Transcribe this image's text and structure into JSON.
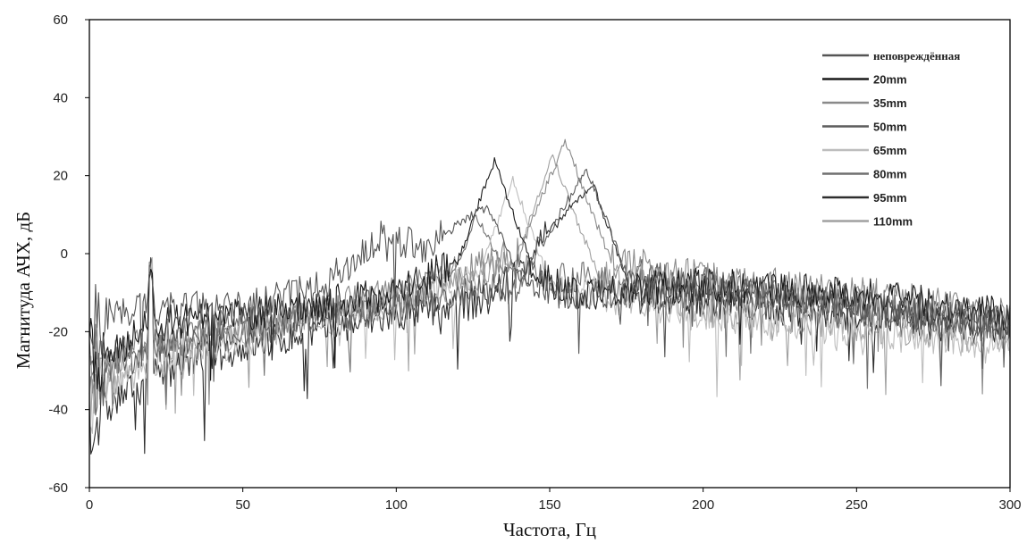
{
  "chart_data": {
    "type": "line",
    "title": "",
    "xlabel": "Частота, Гц",
    "ylabel": "Магнитуда АЧХ, дБ",
    "xlim": [
      0,
      300
    ],
    "ylim": [
      -60,
      60
    ],
    "xticks": [
      "0",
      "50",
      "100",
      "150",
      "200",
      "250",
      "300"
    ],
    "yticks": [
      "60",
      "40",
      "20",
      "0",
      "-20",
      "-40",
      "-60"
    ],
    "grid": false,
    "legend_position": "top-right",
    "series": [
      {
        "name": "неповреждённая",
        "color": "#555555",
        "peak_freq": 130,
        "peak_db": 12,
        "secondary_freq": 95,
        "secondary_db": 4,
        "noise_floor_db": -22,
        "x": [
          0,
          20,
          50,
          75,
          95,
          110,
          125,
          130,
          140,
          160,
          200,
          250,
          300
        ],
        "y": [
          -16,
          -14,
          -14,
          -9,
          4,
          2,
          10,
          12,
          -6,
          -12,
          -8,
          -14,
          -18
        ]
      },
      {
        "name": "20mm",
        "color": "#1a1a1a",
        "peak_freq": 132,
        "peak_db": 24,
        "noise_floor_db": -16,
        "x": [
          0,
          20,
          50,
          100,
          120,
          132,
          140,
          160,
          200,
          250,
          300
        ],
        "y": [
          -28,
          -18,
          -16,
          -10,
          -2,
          24,
          -5,
          -10,
          -8,
          -10,
          -16
        ]
      },
      {
        "name": "35mm",
        "color": "#8a8a8a",
        "peak_freq": 155,
        "peak_db": 29,
        "noise_floor_db": -20,
        "x": [
          0,
          20,
          50,
          100,
          140,
          155,
          170,
          200,
          250,
          300
        ],
        "y": [
          -30,
          -22,
          -18,
          -10,
          0,
          29,
          -2,
          -6,
          -10,
          -16
        ]
      },
      {
        "name": "50mm",
        "color": "#5c5c5c",
        "peak_freq": 162,
        "peak_db": 22,
        "noise_floor_db": -18,
        "x": [
          0,
          20,
          50,
          100,
          140,
          162,
          175,
          200,
          250,
          300
        ],
        "y": [
          -32,
          -24,
          -20,
          -14,
          -8,
          22,
          -5,
          -8,
          -12,
          -18
        ]
      },
      {
        "name": "65mm",
        "color": "#bdbdbd",
        "peak_freq": 138,
        "peak_db": 19,
        "noise_floor_db": -26,
        "x": [
          0,
          20,
          50,
          100,
          130,
          138,
          150,
          200,
          250,
          300
        ],
        "y": [
          -36,
          -28,
          -22,
          -12,
          -4,
          19,
          -8,
          -16,
          -20,
          -24
        ]
      },
      {
        "name": "80mm",
        "color": "#707070",
        "peak_freq": 126,
        "peak_db": 10,
        "noise_floor_db": -20,
        "x": [
          0,
          20,
          50,
          100,
          120,
          126,
          135,
          200,
          250,
          300
        ],
        "y": [
          -30,
          -22,
          -18,
          -12,
          -4,
          10,
          -4,
          -10,
          -14,
          -18
        ]
      },
      {
        "name": "95mm",
        "color": "#2e2e2e",
        "peak_freq": 164,
        "peak_db": 18,
        "noise_floor_db": -24,
        "x": [
          0,
          20,
          50,
          100,
          130,
          164,
          175,
          200,
          250,
          300
        ],
        "y": [
          -44,
          -30,
          -24,
          -16,
          -12,
          18,
          -10,
          -12,
          -16,
          -20
        ]
      },
      {
        "name": "110mm",
        "color": "#a0a0a0",
        "peak_freq": 151,
        "peak_db": 25,
        "noise_floor_db": -24,
        "x": [
          0,
          20,
          50,
          100,
          140,
          151,
          165,
          200,
          250,
          300
        ],
        "y": [
          -38,
          -26,
          -20,
          -12,
          -2,
          25,
          -4,
          -14,
          -18,
          -22
        ]
      }
    ]
  }
}
